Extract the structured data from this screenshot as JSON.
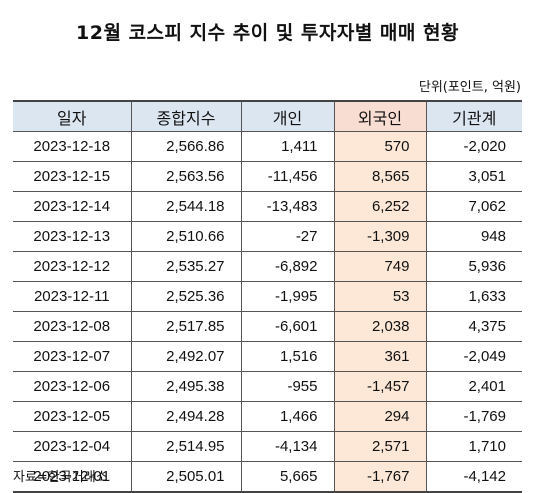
{
  "title": "12월 코스피 지수 추이 및 투자자별 매매 현황",
  "unit": "단위(포인트, 억원)",
  "columns": [
    "일자",
    "종합지수",
    "개인",
    "외국인",
    "기관계"
  ],
  "rows": [
    [
      "2023-12-18",
      "2,566.86",
      "1,411",
      "570",
      "-2,020"
    ],
    [
      "2023-12-15",
      "2,563.56",
      "-11,456",
      "8,565",
      "3,051"
    ],
    [
      "2023-12-14",
      "2,544.18",
      "-13,483",
      "6,252",
      "7,062"
    ],
    [
      "2023-12-13",
      "2,510.66",
      "-27",
      "-1,309",
      "948"
    ],
    [
      "2023-12-12",
      "2,535.27",
      "-6,892",
      "749",
      "5,936"
    ],
    [
      "2023-12-11",
      "2,525.36",
      "-1,995",
      "53",
      "1,633"
    ],
    [
      "2023-12-08",
      "2,517.85",
      "-6,601",
      "2,038",
      "4,375"
    ],
    [
      "2023-12-07",
      "2,492.07",
      "1,516",
      "361",
      "-2,049"
    ],
    [
      "2023-12-06",
      "2,495.38",
      "-955",
      "-1,457",
      "2,401"
    ],
    [
      "2023-12-05",
      "2,494.28",
      "1,466",
      "294",
      "-1,769"
    ],
    [
      "2023-12-04",
      "2,514.95",
      "-4,134",
      "2,571",
      "1,710"
    ],
    [
      "2023-12-01",
      "2,505.01",
      "5,665",
      "-1,767",
      "-4,142"
    ]
  ],
  "source": "자료=한국거래소",
  "colors": {
    "header_bg": "#dce6f1",
    "highlight_header_bg": "#f8ddd2",
    "highlight_cell_bg": "#fde8d8"
  }
}
